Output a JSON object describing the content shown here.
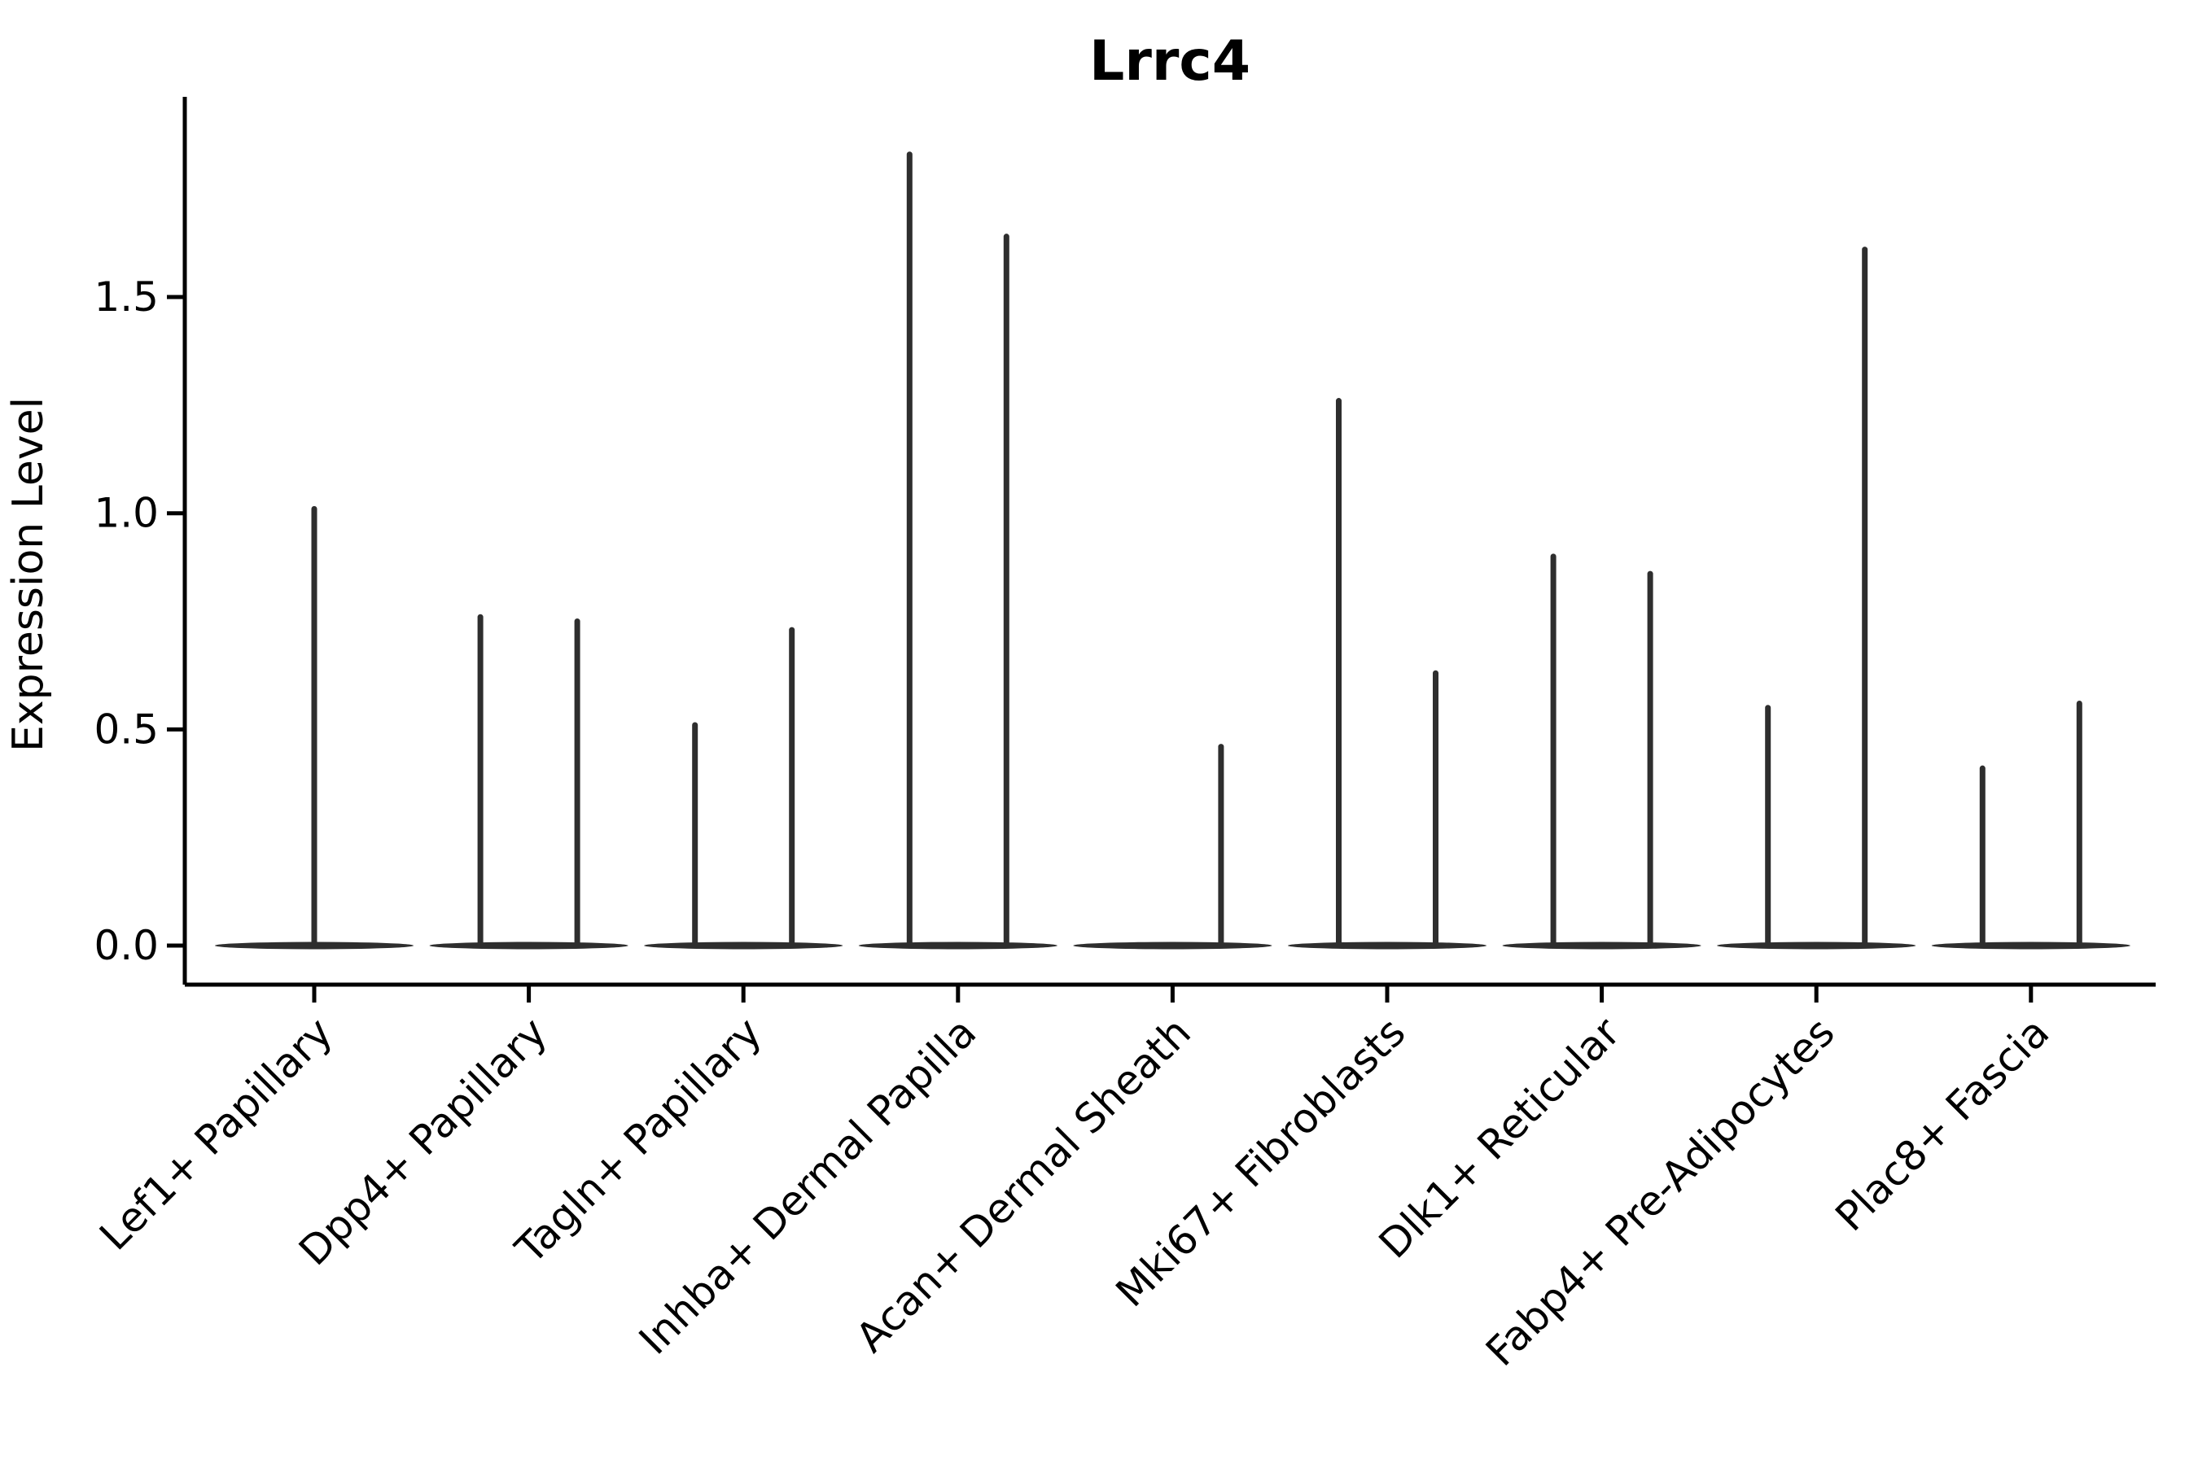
{
  "figure": {
    "title": "Lrrc4",
    "ylabel": "Expression Level",
    "colors": {
      "background": "#ffffff",
      "axis": "#000000",
      "text": "#000000",
      "violin": "#2e2e2e"
    }
  },
  "chart_data": {
    "type": "violin",
    "title": "Lrrc4",
    "xlabel": "",
    "ylabel": "Expression Level",
    "ylim": [
      -0.09,
      1.96
    ],
    "yticks": [
      "0.0",
      "0.5",
      "1.0",
      "1.5"
    ],
    "grid": false,
    "legend": "none",
    "categories": [
      "Lef1+ Papillary",
      "Dpp4+ Papillary",
      "Tagln+ Papillary",
      "Inhba+ Dermal Papilla",
      "Acan+ Dermal Sheath",
      "Mki67+ Fibroblasts",
      "Dlk1+ Reticular",
      "Fabp4+ Pre-Adipocytes",
      "Plac8+ Fascia"
    ],
    "violins": [
      {
        "category": "Lef1+ Papillary",
        "baseline_value": 0.0,
        "spikes": [
          {
            "position": "center",
            "max_expression": 1.01
          }
        ]
      },
      {
        "category": "Dpp4+ Papillary",
        "baseline_value": 0.0,
        "spikes": [
          {
            "position": "left",
            "max_expression": 0.76
          },
          {
            "position": "right",
            "max_expression": 0.75
          }
        ]
      },
      {
        "category": "Tagln+ Papillary",
        "baseline_value": 0.0,
        "spikes": [
          {
            "position": "left",
            "max_expression": 0.51
          },
          {
            "position": "right",
            "max_expression": 0.73
          }
        ]
      },
      {
        "category": "Inhba+ Dermal Papilla",
        "baseline_value": 0.0,
        "spikes": [
          {
            "position": "left",
            "max_expression": 1.83
          },
          {
            "position": "right",
            "max_expression": 1.64
          }
        ]
      },
      {
        "category": "Acan+ Dermal Sheath",
        "baseline_value": 0.0,
        "spikes": [
          {
            "position": "right",
            "max_expression": 0.46
          }
        ]
      },
      {
        "category": "Mki67+ Fibroblasts",
        "baseline_value": 0.0,
        "spikes": [
          {
            "position": "left",
            "max_expression": 1.26
          },
          {
            "position": "right",
            "max_expression": 0.63
          }
        ]
      },
      {
        "category": "Dlk1+ Reticular",
        "baseline_value": 0.0,
        "spikes": [
          {
            "position": "left",
            "max_expression": 0.9
          },
          {
            "position": "right",
            "max_expression": 0.86
          }
        ]
      },
      {
        "category": "Fabp4+ Pre-Adipocytes",
        "baseline_value": 0.0,
        "spikes": [
          {
            "position": "left",
            "max_expression": 0.55
          },
          {
            "position": "right",
            "max_expression": 1.61
          }
        ]
      },
      {
        "category": "Plac8+ Fascia",
        "baseline_value": 0.0,
        "spikes": [
          {
            "position": "left",
            "max_expression": 0.41
          },
          {
            "position": "right",
            "max_expression": 0.56
          }
        ]
      }
    ]
  }
}
